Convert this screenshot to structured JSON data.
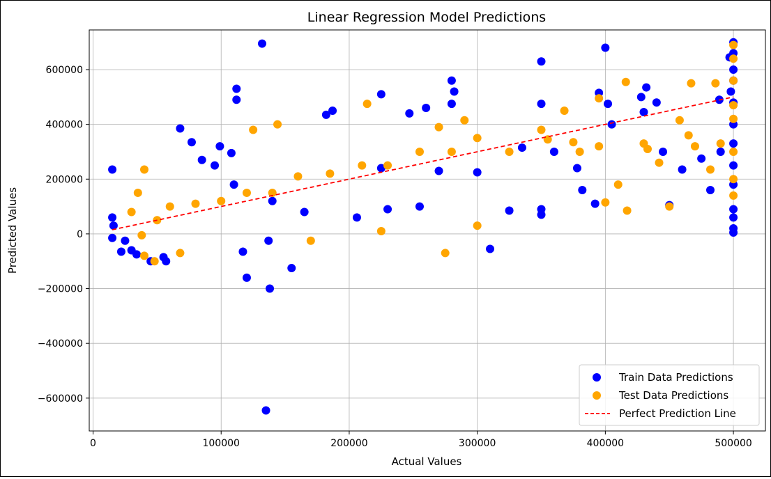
{
  "chart_data": {
    "type": "scatter",
    "title": "Linear Regression Model Predictions",
    "xlabel": "Actual Values",
    "ylabel": "Predicted Values",
    "xlim": [
      -3000,
      525000
    ],
    "ylim": [
      -720000,
      745000
    ],
    "xticks": [
      0,
      100000,
      200000,
      300000,
      400000,
      500000
    ],
    "xtick_labels": [
      "0",
      "100000",
      "200000",
      "300000",
      "400000",
      "500000"
    ],
    "yticks": [
      -600000,
      -400000,
      -200000,
      0,
      200000,
      400000,
      600000
    ],
    "ytick_labels": [
      "−600000",
      "−400000",
      "−200000",
      "0",
      "200000",
      "400000",
      "600000"
    ],
    "grid": true,
    "legend_position": "lower-right",
    "series": [
      {
        "name": "Train Data Predictions",
        "color": "#0000ff",
        "marker": "circle",
        "points": [
          [
            15000,
            235000
          ],
          [
            15000,
            60000
          ],
          [
            16000,
            30000
          ],
          [
            15000,
            -15000
          ],
          [
            22000,
            -65000
          ],
          [
            25000,
            -25000
          ],
          [
            30000,
            -60000
          ],
          [
            34000,
            -75000
          ],
          [
            45000,
            -100000
          ],
          [
            55000,
            -85000
          ],
          [
            57000,
            -100000
          ],
          [
            68000,
            385000
          ],
          [
            77000,
            335000
          ],
          [
            99000,
            320000
          ],
          [
            108000,
            295000
          ],
          [
            112000,
            490000
          ],
          [
            112000,
            530000
          ],
          [
            117000,
            -65000
          ],
          [
            120000,
            -160000
          ],
          [
            132000,
            695000
          ],
          [
            135000,
            -645000
          ],
          [
            138000,
            -200000
          ],
          [
            155000,
            -125000
          ],
          [
            137000,
            -25000
          ],
          [
            182000,
            435000
          ],
          [
            187000,
            450000
          ],
          [
            225000,
            510000
          ],
          [
            247000,
            440000
          ],
          [
            260000,
            460000
          ],
          [
            280000,
            560000
          ],
          [
            282000,
            520000
          ],
          [
            280000,
            475000
          ],
          [
            310000,
            -55000
          ],
          [
            350000,
            630000
          ],
          [
            350000,
            475000
          ],
          [
            400000,
            680000
          ],
          [
            395000,
            515000
          ],
          [
            402000,
            475000
          ],
          [
            428000,
            500000
          ],
          [
            432000,
            535000
          ],
          [
            440000,
            480000
          ],
          [
            405000,
            400000
          ],
          [
            430000,
            445000
          ],
          [
            450000,
            105000
          ],
          [
            482000,
            160000
          ],
          [
            489000,
            490000
          ],
          [
            497000,
            645000
          ],
          [
            498000,
            520000
          ],
          [
            500000,
            700000
          ],
          [
            500000,
            660000
          ],
          [
            500000,
            600000
          ],
          [
            500000,
            560000
          ],
          [
            500000,
            480000
          ],
          [
            500000,
            400000
          ],
          [
            500000,
            330000
          ],
          [
            500000,
            250000
          ],
          [
            500000,
            180000
          ],
          [
            500000,
            90000
          ],
          [
            500000,
            20000
          ],
          [
            500000,
            5000
          ],
          [
            500000,
            60000
          ],
          [
            225000,
            240000
          ],
          [
            270000,
            230000
          ],
          [
            300000,
            225000
          ],
          [
            350000,
            70000
          ],
          [
            350000,
            90000
          ],
          [
            335000,
            315000
          ],
          [
            360000,
            300000
          ],
          [
            445000,
            300000
          ],
          [
            460000,
            235000
          ],
          [
            475000,
            275000
          ],
          [
            490000,
            300000
          ],
          [
            378000,
            240000
          ],
          [
            382000,
            160000
          ],
          [
            392000,
            110000
          ],
          [
            325000,
            85000
          ],
          [
            255000,
            100000
          ],
          [
            230000,
            90000
          ],
          [
            206000,
            60000
          ],
          [
            165000,
            80000
          ],
          [
            140000,
            120000
          ],
          [
            110000,
            180000
          ],
          [
            95000,
            250000
          ],
          [
            85000,
            270000
          ]
        ]
      },
      {
        "name": "Test Data Predictions",
        "color": "#ffa500",
        "marker": "circle",
        "points": [
          [
            40000,
            235000
          ],
          [
            35000,
            150000
          ],
          [
            30000,
            80000
          ],
          [
            38000,
            -5000
          ],
          [
            40000,
            -80000
          ],
          [
            48000,
            -100000
          ],
          [
            68000,
            -70000
          ],
          [
            125000,
            380000
          ],
          [
            144000,
            400000
          ],
          [
            170000,
            -25000
          ],
          [
            214000,
            475000
          ],
          [
            225000,
            10000
          ],
          [
            275000,
            -70000
          ],
          [
            290000,
            415000
          ],
          [
            300000,
            30000
          ],
          [
            368000,
            450000
          ],
          [
            395000,
            495000
          ],
          [
            400000,
            115000
          ],
          [
            416000,
            555000
          ],
          [
            417000,
            85000
          ],
          [
            433000,
            310000
          ],
          [
            450000,
            100000
          ],
          [
            467000,
            550000
          ],
          [
            486000,
            550000
          ],
          [
            482000,
            235000
          ],
          [
            410000,
            180000
          ],
          [
            395000,
            320000
          ],
          [
            375000,
            335000
          ],
          [
            355000,
            345000
          ],
          [
            325000,
            300000
          ],
          [
            280000,
            300000
          ],
          [
            255000,
            300000
          ],
          [
            230000,
            250000
          ],
          [
            210000,
            250000
          ],
          [
            185000,
            220000
          ],
          [
            160000,
            210000
          ],
          [
            140000,
            150000
          ],
          [
            120000,
            150000
          ],
          [
            100000,
            120000
          ],
          [
            80000,
            110000
          ],
          [
            60000,
            100000
          ],
          [
            50000,
            50000
          ],
          [
            500000,
            690000
          ],
          [
            500000,
            640000
          ],
          [
            500000,
            560000
          ],
          [
            500000,
            470000
          ],
          [
            500000,
            420000
          ],
          [
            500000,
            300000
          ],
          [
            500000,
            200000
          ],
          [
            500000,
            140000
          ],
          [
            458000,
            415000
          ],
          [
            430000,
            330000
          ],
          [
            442000,
            260000
          ],
          [
            465000,
            360000
          ],
          [
            470000,
            320000
          ],
          [
            490000,
            330000
          ],
          [
            300000,
            350000
          ],
          [
            350000,
            380000
          ],
          [
            380000,
            300000
          ],
          [
            270000,
            390000
          ]
        ]
      }
    ],
    "reference_line": {
      "name": "Perfect Prediction Line",
      "color": "#ff0000",
      "style": "dashed",
      "x": [
        15000,
        500000
      ],
      "y": [
        15000,
        500000
      ]
    },
    "legend": [
      {
        "label": "Train Data Predictions",
        "kind": "marker",
        "color": "#0000ff"
      },
      {
        "label": "Test Data Predictions",
        "kind": "marker",
        "color": "#ffa500"
      },
      {
        "label": "Perfect Prediction Line",
        "kind": "dashed-line",
        "color": "#ff0000"
      }
    ]
  }
}
